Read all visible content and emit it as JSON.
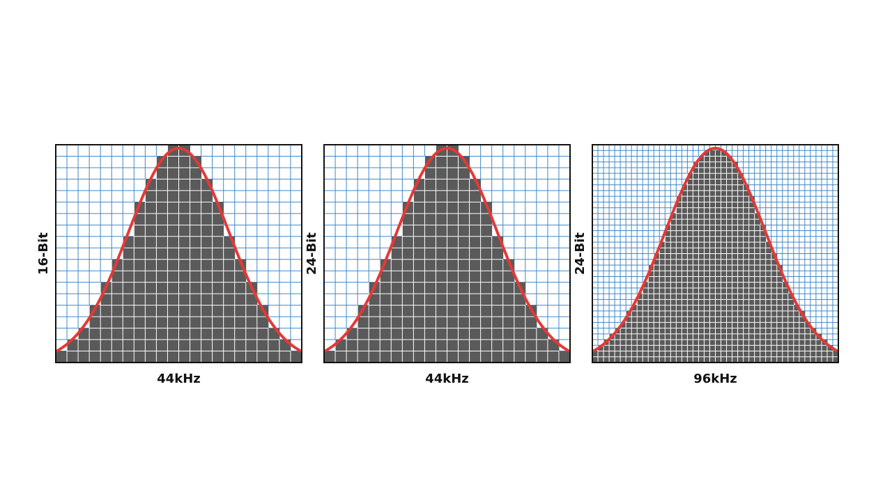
{
  "colors": {
    "background": "#ffffff",
    "grid": "#3f87c9",
    "fill": "#5a5a5a",
    "fill_grid": "#ffffff",
    "curve": "#e53935",
    "frame": "#111111"
  },
  "panels": [
    {
      "y_label": "16-Bit",
      "x_label": "44kHz",
      "columns": 22,
      "levels": 19
    },
    {
      "y_label": "24-Bit",
      "x_label": "44kHz",
      "columns": 22,
      "levels": 19
    },
    {
      "y_label": "24-Bit",
      "x_label": "96kHz",
      "columns": 44,
      "levels": 38
    }
  ]
}
